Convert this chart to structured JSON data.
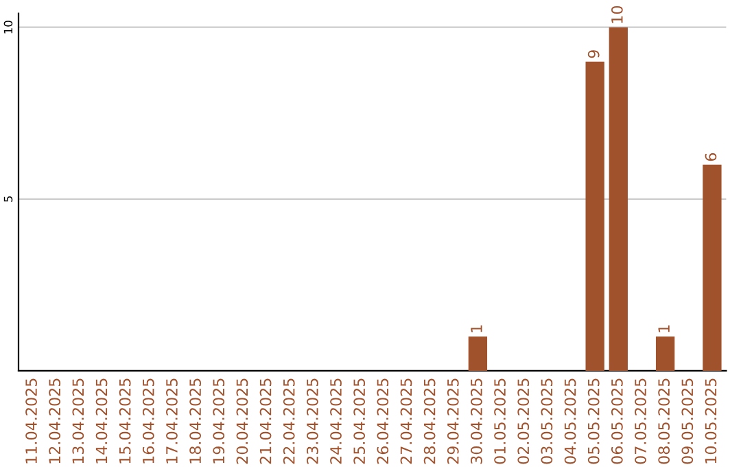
{
  "chart_data": {
    "type": "bar",
    "categories": [
      "11.04.2025",
      "12.04.2025",
      "13.04.2025",
      "14.04.2025",
      "15.04.2025",
      "16.04.2025",
      "17.04.2025",
      "18.04.2025",
      "19.04.2025",
      "20.04.2025",
      "21.04.2025",
      "22.04.2025",
      "23.04.2025",
      "24.04.2025",
      "25.04.2025",
      "26.04.2025",
      "27.04.2025",
      "28.04.2025",
      "29.04.2025",
      "30.04.2025",
      "01.05.2025",
      "02.05.2025",
      "03.05.2025",
      "04.05.2025",
      "05.05.2025",
      "06.05.2025",
      "07.05.2025",
      "08.05.2025",
      "09.05.2025",
      "10.05.2025"
    ],
    "values": [
      0,
      0,
      0,
      0,
      0,
      0,
      0,
      0,
      0,
      0,
      0,
      0,
      0,
      0,
      0,
      0,
      0,
      0,
      0,
      1,
      0,
      0,
      0,
      0,
      9,
      10,
      0,
      1,
      0,
      6
    ],
    "value_labels": [
      null,
      null,
      null,
      null,
      null,
      null,
      null,
      null,
      null,
      null,
      null,
      null,
      null,
      null,
      null,
      null,
      null,
      null,
      null,
      "1",
      null,
      null,
      null,
      null,
      "9",
      "10",
      null,
      "1",
      null,
      "6"
    ],
    "color": "#a0522d",
    "ylim": [
      0,
      10.4
    ],
    "yticks": [
      5,
      10
    ],
    "grid": "y"
  }
}
